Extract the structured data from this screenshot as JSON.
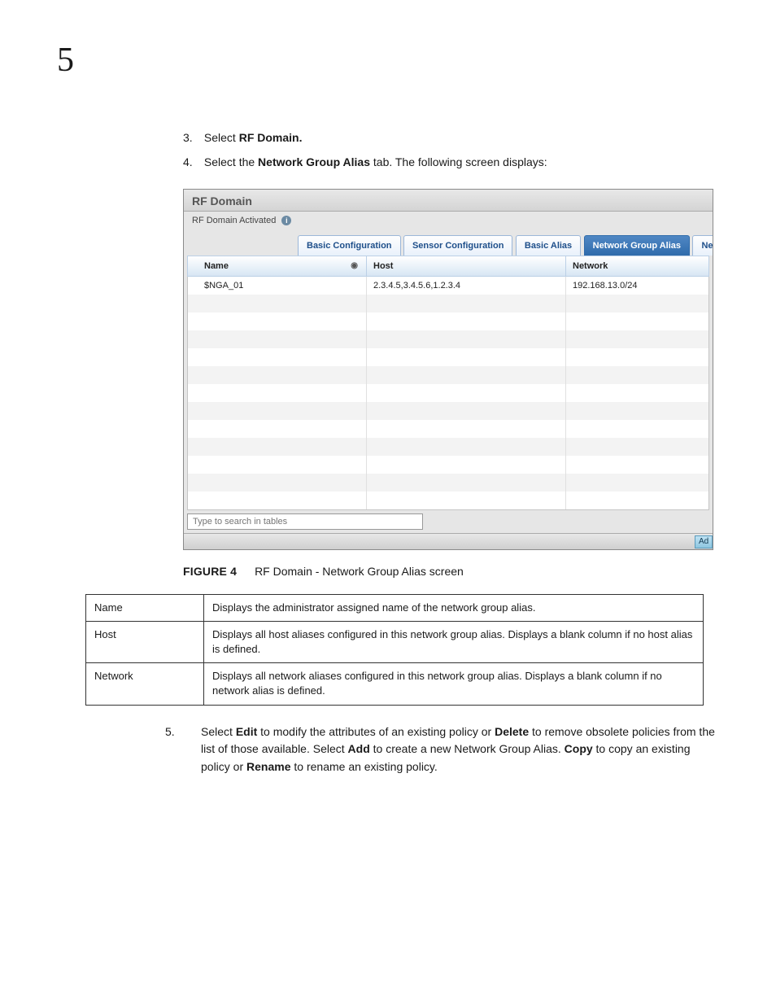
{
  "chapter": "5",
  "steps": {
    "s3": {
      "num": "3.",
      "pre": "Select ",
      "bold": "RF Domain."
    },
    "s4": {
      "num": "4.",
      "pre": "Select the ",
      "bold": "Network Group Alias",
      "post": " tab. The following screen displays:"
    },
    "s5": {
      "num": "5.",
      "t1": "Select ",
      "b1": "Edit",
      "t2": " to modify the attributes of an existing policy or ",
      "b2": "Delete",
      "t3": " to remove obsolete policies from the list of those available. Select ",
      "b3": "Add",
      "t4": " to create a new Network Group Alias. ",
      "b4": "Copy",
      "t5": " to copy an existing policy or ",
      "b5": "Rename",
      "t6": " to rename an existing policy."
    }
  },
  "figure": {
    "panel_title": "RF Domain",
    "subtitle": "RF Domain Activated",
    "tabs": {
      "t0": "Basic Configuration",
      "t1": "Sensor Configuration",
      "t2": "Basic Alias",
      "t3": "Network Group Alias",
      "t4": "Network"
    },
    "columns": {
      "name": "Name",
      "host": "Host",
      "net": "Network"
    },
    "row0": {
      "name": "$NGA_01",
      "host": "2.3.4.5,3.4.5.6,1.2.3.4",
      "net": "192.168.13.0/24"
    },
    "search_placeholder": "Type to search in tables",
    "footer_btn": "Ad"
  },
  "caption": {
    "label": "FIGURE 4",
    "text": "RF Domain - Network Group Alias screen"
  },
  "defs": {
    "r0": {
      "label": "Name",
      "desc": "Displays the administrator assigned name of the network group alias."
    },
    "r1": {
      "label": "Host",
      "desc": "Displays all host aliases configured in this network group alias. Displays a blank column if no host alias is defined."
    },
    "r2": {
      "label": "Network",
      "desc": "Displays all network aliases configured in this network group alias. Displays a blank column if no network alias is defined."
    }
  }
}
